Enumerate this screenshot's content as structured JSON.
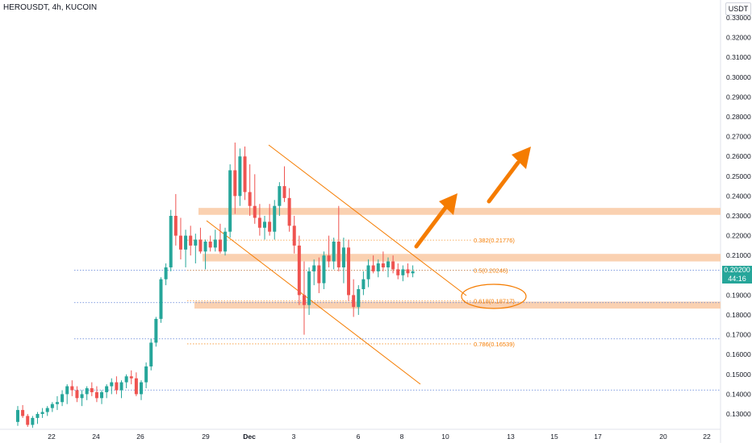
{
  "header": {
    "symbol": "HEROUSDT",
    "interval": "4h",
    "exchange": "KUCOIN",
    "sep1": ", ",
    "sep2": ", "
  },
  "currency_label": "USDT",
  "last_price": {
    "value": "0.20200",
    "countdown": "44:16",
    "color": "#26a69a"
  },
  "colors": {
    "up": "#26a69a",
    "down": "#ef5350",
    "drawing": "#f57c00",
    "zone": "#f9c9a3",
    "blue_line": "#2962ff"
  },
  "chart_data": {
    "type": "candlestick",
    "y_axis": {
      "ylim": [
        0.123,
        0.339
      ],
      "ticks": [
        "0.33000",
        "0.32000",
        "0.31000",
        "0.30000",
        "0.29000",
        "0.28000",
        "0.27000",
        "0.26000",
        "0.25000",
        "0.24000",
        "0.23000",
        "0.22000",
        "0.21000",
        "0.20000",
        "0.19000",
        "0.18000",
        "0.17000",
        "0.16000",
        "0.15000",
        "0.14000",
        "0.13000"
      ]
    },
    "x_axis": {
      "labels": [
        "22",
        "24",
        "26",
        "29",
        "Dec",
        "3",
        "6",
        "8",
        "10",
        "13",
        "15",
        "17",
        "20",
        "22"
      ]
    },
    "candles": [
      {
        "o": 0.126,
        "h": 0.134,
        "l": 0.124,
        "c": 0.132
      },
      {
        "o": 0.132,
        "h": 0.1345,
        "l": 0.128,
        "c": 0.129
      },
      {
        "o": 0.129,
        "h": 0.13,
        "l": 0.1235,
        "c": 0.1245
      },
      {
        "o": 0.1245,
        "h": 0.129,
        "l": 0.123,
        "c": 0.128
      },
      {
        "o": 0.128,
        "h": 0.131,
        "l": 0.125,
        "c": 0.13
      },
      {
        "o": 0.13,
        "h": 0.133,
        "l": 0.128,
        "c": 0.131
      },
      {
        "o": 0.131,
        "h": 0.134,
        "l": 0.129,
        "c": 0.133
      },
      {
        "o": 0.133,
        "h": 0.136,
        "l": 0.131,
        "c": 0.135
      },
      {
        "o": 0.135,
        "h": 0.139,
        "l": 0.132,
        "c": 0.136
      },
      {
        "o": 0.136,
        "h": 0.142,
        "l": 0.134,
        "c": 0.14
      },
      {
        "o": 0.14,
        "h": 0.145,
        "l": 0.135,
        "c": 0.144
      },
      {
        "o": 0.144,
        "h": 0.147,
        "l": 0.139,
        "c": 0.142
      },
      {
        "o": 0.142,
        "h": 0.144,
        "l": 0.136,
        "c": 0.138
      },
      {
        "o": 0.138,
        "h": 0.142,
        "l": 0.134,
        "c": 0.14
      },
      {
        "o": 0.14,
        "h": 0.144,
        "l": 0.137,
        "c": 0.143
      },
      {
        "o": 0.143,
        "h": 0.146,
        "l": 0.139,
        "c": 0.141
      },
      {
        "o": 0.141,
        "h": 0.144,
        "l": 0.136,
        "c": 0.138
      },
      {
        "o": 0.138,
        "h": 0.142,
        "l": 0.135,
        "c": 0.141
      },
      {
        "o": 0.141,
        "h": 0.145,
        "l": 0.138,
        "c": 0.144
      },
      {
        "o": 0.144,
        "h": 0.148,
        "l": 0.14,
        "c": 0.146
      },
      {
        "o": 0.146,
        "h": 0.149,
        "l": 0.14,
        "c": 0.142
      },
      {
        "o": 0.142,
        "h": 0.147,
        "l": 0.138,
        "c": 0.146
      },
      {
        "o": 0.146,
        "h": 0.15,
        "l": 0.143,
        "c": 0.149
      },
      {
        "o": 0.149,
        "h": 0.152,
        "l": 0.145,
        "c": 0.148
      },
      {
        "o": 0.148,
        "h": 0.151,
        "l": 0.139,
        "c": 0.14
      },
      {
        "o": 0.14,
        "h": 0.147,
        "l": 0.137,
        "c": 0.146
      },
      {
        "o": 0.146,
        "h": 0.156,
        "l": 0.143,
        "c": 0.154
      },
      {
        "o": 0.154,
        "h": 0.168,
        "l": 0.152,
        "c": 0.166
      },
      {
        "o": 0.166,
        "h": 0.179,
        "l": 0.164,
        "c": 0.178
      },
      {
        "o": 0.178,
        "h": 0.199,
        "l": 0.176,
        "c": 0.198
      },
      {
        "o": 0.198,
        "h": 0.206,
        "l": 0.195,
        "c": 0.204
      },
      {
        "o": 0.204,
        "h": 0.233,
        "l": 0.202,
        "c": 0.23
      },
      {
        "o": 0.23,
        "h": 0.241,
        "l": 0.215,
        "c": 0.22
      },
      {
        "o": 0.22,
        "h": 0.229,
        "l": 0.208,
        "c": 0.213
      },
      {
        "o": 0.213,
        "h": 0.223,
        "l": 0.204,
        "c": 0.22
      },
      {
        "o": 0.22,
        "h": 0.225,
        "l": 0.21,
        "c": 0.215
      },
      {
        "o": 0.215,
        "h": 0.221,
        "l": 0.206,
        "c": 0.218
      },
      {
        "o": 0.218,
        "h": 0.224,
        "l": 0.211,
        "c": 0.212
      },
      {
        "o": 0.212,
        "h": 0.218,
        "l": 0.203,
        "c": 0.217
      },
      {
        "o": 0.217,
        "h": 0.22,
        "l": 0.212,
        "c": 0.214
      },
      {
        "o": 0.214,
        "h": 0.223,
        "l": 0.212,
        "c": 0.218
      },
      {
        "o": 0.218,
        "h": 0.226,
        "l": 0.211,
        "c": 0.212
      },
      {
        "o": 0.212,
        "h": 0.224,
        "l": 0.21,
        "c": 0.222
      },
      {
        "o": 0.222,
        "h": 0.256,
        "l": 0.219,
        "c": 0.253
      },
      {
        "o": 0.253,
        "h": 0.267,
        "l": 0.231,
        "c": 0.24
      },
      {
        "o": 0.24,
        "h": 0.264,
        "l": 0.235,
        "c": 0.26
      },
      {
        "o": 0.26,
        "h": 0.265,
        "l": 0.238,
        "c": 0.242
      },
      {
        "o": 0.242,
        "h": 0.256,
        "l": 0.23,
        "c": 0.235
      },
      {
        "o": 0.235,
        "h": 0.251,
        "l": 0.226,
        "c": 0.229
      },
      {
        "o": 0.229,
        "h": 0.236,
        "l": 0.22,
        "c": 0.224
      },
      {
        "o": 0.224,
        "h": 0.23,
        "l": 0.218,
        "c": 0.227
      },
      {
        "o": 0.227,
        "h": 0.236,
        "l": 0.22,
        "c": 0.222
      },
      {
        "o": 0.222,
        "h": 0.238,
        "l": 0.218,
        "c": 0.235
      },
      {
        "o": 0.235,
        "h": 0.247,
        "l": 0.23,
        "c": 0.245
      },
      {
        "o": 0.245,
        "h": 0.255,
        "l": 0.237,
        "c": 0.239
      },
      {
        "o": 0.239,
        "h": 0.244,
        "l": 0.222,
        "c": 0.225
      },
      {
        "o": 0.225,
        "h": 0.23,
        "l": 0.211,
        "c": 0.215
      },
      {
        "o": 0.215,
        "h": 0.22,
        "l": 0.185,
        "c": 0.19
      },
      {
        "o": 0.19,
        "h": 0.207,
        "l": 0.17,
        "c": 0.185
      },
      {
        "o": 0.185,
        "h": 0.204,
        "l": 0.18,
        "c": 0.202
      },
      {
        "o": 0.202,
        "h": 0.208,
        "l": 0.195,
        "c": 0.205
      },
      {
        "o": 0.205,
        "h": 0.209,
        "l": 0.191,
        "c": 0.196
      },
      {
        "o": 0.196,
        "h": 0.212,
        "l": 0.193,
        "c": 0.21
      },
      {
        "o": 0.21,
        "h": 0.22,
        "l": 0.204,
        "c": 0.207
      },
      {
        "o": 0.207,
        "h": 0.219,
        "l": 0.203,
        "c": 0.217
      },
      {
        "o": 0.217,
        "h": 0.235,
        "l": 0.202,
        "c": 0.204
      },
      {
        "o": 0.204,
        "h": 0.219,
        "l": 0.196,
        "c": 0.214
      },
      {
        "o": 0.214,
        "h": 0.218,
        "l": 0.187,
        "c": 0.19
      },
      {
        "o": 0.19,
        "h": 0.198,
        "l": 0.179,
        "c": 0.184
      },
      {
        "o": 0.184,
        "h": 0.195,
        "l": 0.18,
        "c": 0.193
      },
      {
        "o": 0.193,
        "h": 0.202,
        "l": 0.19,
        "c": 0.198
      },
      {
        "o": 0.198,
        "h": 0.208,
        "l": 0.194,
        "c": 0.205
      },
      {
        "o": 0.205,
        "h": 0.21,
        "l": 0.201,
        "c": 0.202
      },
      {
        "o": 0.202,
        "h": 0.208,
        "l": 0.199,
        "c": 0.206
      },
      {
        "o": 0.206,
        "h": 0.212,
        "l": 0.202,
        "c": 0.204
      },
      {
        "o": 0.204,
        "h": 0.209,
        "l": 0.199,
        "c": 0.207
      },
      {
        "o": 0.207,
        "h": 0.21,
        "l": 0.201,
        "c": 0.203
      },
      {
        "o": 0.203,
        "h": 0.206,
        "l": 0.198,
        "c": 0.2
      },
      {
        "o": 0.2,
        "h": 0.205,
        "l": 0.197,
        "c": 0.203
      },
      {
        "o": 0.203,
        "h": 0.206,
        "l": 0.199,
        "c": 0.201
      },
      {
        "o": 0.201,
        "h": 0.205,
        "l": 0.199,
        "c": 0.202
      }
    ],
    "horizontal_lines": [
      0.2025,
      0.1862,
      0.1679,
      0.1421
    ],
    "zones": [
      {
        "top": 0.234,
        "bottom": 0.2305
      },
      {
        "top": 0.2108,
        "bottom": 0.207
      },
      {
        "top": 0.1867,
        "bottom": 0.1832
      }
    ],
    "fib_levels": [
      {
        "label": "0.382(0.21776)",
        "value": 0.21776
      },
      {
        "label": "0.5(0.20246)",
        "value": 0.20246
      },
      {
        "label": "0.618(0.18717)",
        "value": 0.18717
      },
      {
        "label": "0.786(0.16539)",
        "value": 0.16539
      }
    ]
  }
}
